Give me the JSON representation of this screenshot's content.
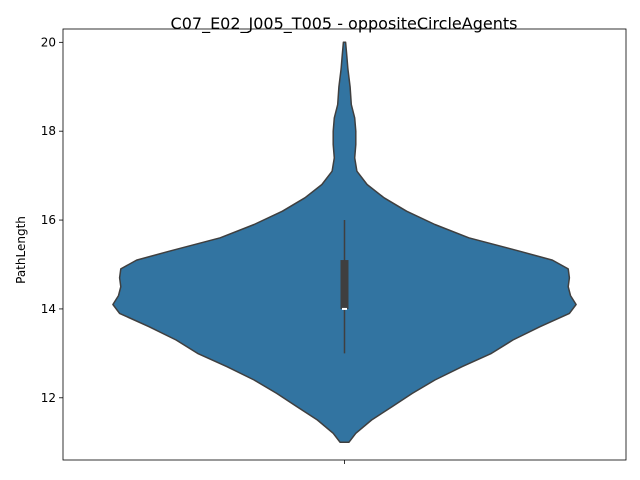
{
  "chart_data": {
    "type": "violin",
    "title": "C07_E02_J005_T005 - oppositeCircleAgents",
    "xlabel": "",
    "ylabel": "PathLength",
    "ylim": [
      10.6,
      20.3
    ],
    "yticks": [
      12,
      14,
      16,
      18,
      20
    ],
    "categories": [
      ""
    ],
    "grid": false,
    "legend": "none",
    "color": "#3274a1",
    "edge_color": "#3f3f3f",
    "violin": {
      "min": 11.0,
      "max": 20.0,
      "profile": [
        {
          "y": 11.0,
          "w": 0.04
        },
        {
          "y": 11.2,
          "w": 0.1
        },
        {
          "y": 11.5,
          "w": 0.24
        },
        {
          "y": 11.8,
          "w": 0.42
        },
        {
          "y": 12.1,
          "w": 0.6
        },
        {
          "y": 12.4,
          "w": 0.8
        },
        {
          "y": 12.7,
          "w": 1.04
        },
        {
          "y": 13.0,
          "w": 1.3
        },
        {
          "y": 13.3,
          "w": 1.49
        },
        {
          "y": 13.6,
          "w": 1.73
        },
        {
          "y": 13.9,
          "w": 1.99
        },
        {
          "y": 14.1,
          "w": 2.05
        },
        {
          "y": 14.3,
          "w": 2.0
        },
        {
          "y": 14.5,
          "w": 1.98
        },
        {
          "y": 14.7,
          "w": 1.99
        },
        {
          "y": 14.9,
          "w": 1.98
        },
        {
          "y": 15.1,
          "w": 1.84
        },
        {
          "y": 15.3,
          "w": 1.55
        },
        {
          "y": 15.6,
          "w": 1.1
        },
        {
          "y": 15.9,
          "w": 0.8
        },
        {
          "y": 16.2,
          "w": 0.55
        },
        {
          "y": 16.5,
          "w": 0.35
        },
        {
          "y": 16.8,
          "w": 0.2
        },
        {
          "y": 17.1,
          "w": 0.11
        },
        {
          "y": 17.4,
          "w": 0.09
        },
        {
          "y": 17.7,
          "w": 0.1
        },
        {
          "y": 18.0,
          "w": 0.1
        },
        {
          "y": 18.3,
          "w": 0.09
        },
        {
          "y": 18.6,
          "w": 0.06
        },
        {
          "y": 19.0,
          "w": 0.05
        },
        {
          "y": 19.4,
          "w": 0.03
        },
        {
          "y": 19.7,
          "w": 0.02
        },
        {
          "y": 20.0,
          "w": 0.01
        }
      ]
    },
    "box": {
      "q1": 14.0,
      "median": 14.0,
      "q3": 15.1,
      "whisker_low": 13.0,
      "whisker_high": 16.0
    }
  }
}
